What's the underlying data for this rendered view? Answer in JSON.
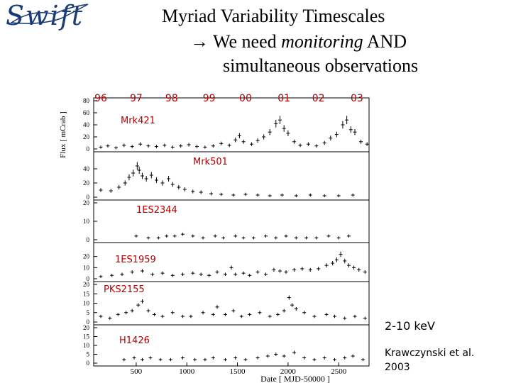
{
  "header": {
    "logo_text": "Swift",
    "title_line1": "Myriad Variability Timescales",
    "arrow": "→",
    "title_line2_pre": " We need ",
    "title_line2_em": "monitoring",
    "title_line2_post": " AND",
    "title_line3": "simultaneous observations"
  },
  "notes": {
    "energy_band": "2-10 keV",
    "citation_line1": "Krawczynski et al.",
    "citation_line2": "2003"
  },
  "colors": {
    "year_label": "#b00000",
    "source_label": "#b00000",
    "points": "#000000",
    "logo": "#1b3a78"
  },
  "chart_data": {
    "type": "scatter",
    "title": "",
    "xlabel": "Date [ MJD-50000 ]",
    "ylabel": "Flux [ mCrab ]",
    "xlim": [
      80,
      2800
    ],
    "xticks": [
      500,
      1000,
      1500,
      2000,
      2500
    ],
    "year_labels": [
      {
        "label": "96",
        "x": 150
      },
      {
        "label": "97",
        "x": 500
      },
      {
        "label": "98",
        "x": 850
      },
      {
        "label": "99",
        "x": 1220
      },
      {
        "label": "00",
        "x": 1580
      },
      {
        "label": "01",
        "x": 1960
      },
      {
        "label": "02",
        "x": 2300
      },
      {
        "label": "03",
        "x": 2680
      }
    ],
    "panels": [
      {
        "name": "Mrk421",
        "ylim": [
          0,
          80
        ],
        "yticks": [
          0,
          20,
          40,
          60,
          80
        ],
        "points": [
          [
            150,
            3
          ],
          [
            220,
            5
          ],
          [
            300,
            2
          ],
          [
            380,
            6
          ],
          [
            460,
            4
          ],
          [
            540,
            8
          ],
          [
            620,
            5
          ],
          [
            700,
            4
          ],
          [
            780,
            6
          ],
          [
            860,
            3
          ],
          [
            940,
            5
          ],
          [
            1020,
            7
          ],
          [
            1100,
            4
          ],
          [
            1180,
            3
          ],
          [
            1260,
            5
          ],
          [
            1340,
            9
          ],
          [
            1420,
            6
          ],
          [
            1480,
            15
          ],
          [
            1520,
            22
          ],
          [
            1560,
            12
          ],
          [
            1640,
            8
          ],
          [
            1700,
            14
          ],
          [
            1760,
            20
          ],
          [
            1820,
            28
          ],
          [
            1880,
            42
          ],
          [
            1920,
            48
          ],
          [
            1960,
            34
          ],
          [
            2000,
            26
          ],
          [
            2060,
            12
          ],
          [
            2120,
            6
          ],
          [
            2200,
            8
          ],
          [
            2280,
            5
          ],
          [
            2360,
            10
          ],
          [
            2420,
            18
          ],
          [
            2480,
            24
          ],
          [
            2540,
            40
          ],
          [
            2580,
            48
          ],
          [
            2620,
            32
          ],
          [
            2660,
            28
          ],
          [
            2720,
            12
          ],
          [
            2780,
            8
          ]
        ]
      },
      {
        "name": "Mrk501",
        "ylim": [
          0,
          60
        ],
        "yticks": [
          0,
          20,
          40
        ],
        "points": [
          [
            150,
            10
          ],
          [
            250,
            9
          ],
          [
            330,
            14
          ],
          [
            390,
            20
          ],
          [
            430,
            28
          ],
          [
            470,
            34
          ],
          [
            510,
            44
          ],
          [
            530,
            38
          ],
          [
            560,
            30
          ],
          [
            600,
            26
          ],
          [
            650,
            31
          ],
          [
            700,
            24
          ],
          [
            760,
            20
          ],
          [
            820,
            26
          ],
          [
            860,
            18
          ],
          [
            920,
            14
          ],
          [
            980,
            11
          ],
          [
            1060,
            8
          ],
          [
            1140,
            7
          ],
          [
            1240,
            5
          ],
          [
            1340,
            4
          ],
          [
            1460,
            3
          ],
          [
            1580,
            4
          ],
          [
            1700,
            3
          ],
          [
            1820,
            2
          ],
          [
            1940,
            3
          ],
          [
            2080,
            2
          ],
          [
            2220,
            3
          ],
          [
            2360,
            2
          ],
          [
            2500,
            2
          ],
          [
            2640,
            3
          ]
        ]
      },
      {
        "name": "1ES2344",
        "ylim": [
          0,
          20
        ],
        "yticks": [
          0,
          10,
          20
        ],
        "points": [
          [
            500,
            2
          ],
          [
            620,
            1
          ],
          [
            720,
            1
          ],
          [
            800,
            2
          ],
          [
            880,
            2
          ],
          [
            960,
            3
          ],
          [
            1060,
            2
          ],
          [
            1160,
            1
          ],
          [
            1280,
            2
          ],
          [
            1360,
            1
          ],
          [
            1480,
            2
          ],
          [
            1560,
            1
          ],
          [
            1660,
            1
          ],
          [
            1780,
            2
          ],
          [
            1880,
            1
          ],
          [
            1980,
            2
          ],
          [
            2080,
            1
          ],
          [
            2180,
            1
          ],
          [
            2280,
            1
          ],
          [
            2400,
            2
          ],
          [
            2500,
            1
          ],
          [
            2600,
            2
          ]
        ]
      },
      {
        "name": "1ES1959",
        "ylim": [
          0,
          30
        ],
        "yticks": [
          0,
          10,
          20
        ],
        "points": [
          [
            150,
            2
          ],
          [
            260,
            3
          ],
          [
            360,
            4
          ],
          [
            460,
            6
          ],
          [
            560,
            7
          ],
          [
            660,
            4
          ],
          [
            760,
            5
          ],
          [
            860,
            3
          ],
          [
            960,
            4
          ],
          [
            1060,
            5
          ],
          [
            1140,
            4
          ],
          [
            1220,
            3
          ],
          [
            1300,
            6
          ],
          [
            1380,
            4
          ],
          [
            1440,
            10
          ],
          [
            1480,
            4
          ],
          [
            1560,
            5
          ],
          [
            1620,
            3
          ],
          [
            1700,
            6
          ],
          [
            1780,
            4
          ],
          [
            1860,
            8
          ],
          [
            1920,
            7
          ],
          [
            1980,
            6
          ],
          [
            2060,
            8
          ],
          [
            2140,
            9
          ],
          [
            2220,
            8
          ],
          [
            2300,
            9
          ],
          [
            2380,
            12
          ],
          [
            2440,
            14
          ],
          [
            2480,
            17
          ],
          [
            2520,
            22
          ],
          [
            2560,
            16
          ],
          [
            2600,
            12
          ],
          [
            2650,
            10
          ],
          [
            2700,
            8
          ],
          [
            2760,
            6
          ]
        ]
      },
      {
        "name": "PKS2155",
        "ylim": [
          0,
          20
        ],
        "yticks": [
          0,
          5,
          10,
          15,
          20
        ],
        "points": [
          [
            150,
            3
          ],
          [
            240,
            2
          ],
          [
            320,
            4
          ],
          [
            400,
            5
          ],
          [
            460,
            6
          ],
          [
            520,
            9
          ],
          [
            560,
            11
          ],
          [
            620,
            6
          ],
          [
            680,
            4
          ],
          [
            760,
            3
          ],
          [
            860,
            5
          ],
          [
            960,
            3
          ],
          [
            1040,
            3
          ],
          [
            1160,
            5
          ],
          [
            1260,
            4
          ],
          [
            1300,
            8
          ],
          [
            1380,
            4
          ],
          [
            1460,
            6
          ],
          [
            1540,
            3
          ],
          [
            1620,
            4
          ],
          [
            1720,
            5
          ],
          [
            1820,
            3
          ],
          [
            1900,
            4
          ],
          [
            1960,
            6
          ],
          [
            2010,
            13
          ],
          [
            2040,
            9
          ],
          [
            2080,
            7
          ],
          [
            2160,
            5
          ],
          [
            2260,
            3
          ],
          [
            2380,
            4
          ],
          [
            2460,
            3
          ],
          [
            2560,
            2
          ],
          [
            2660,
            3
          ],
          [
            2760,
            2
          ]
        ]
      },
      {
        "name": "H1426",
        "ylim": [
          0,
          20
        ],
        "yticks": [
          0,
          5,
          10,
          15,
          20
        ],
        "points": [
          [
            380,
            2
          ],
          [
            480,
            3
          ],
          [
            560,
            2
          ],
          [
            640,
            3
          ],
          [
            740,
            2
          ],
          [
            840,
            2
          ],
          [
            960,
            3
          ],
          [
            1080,
            2
          ],
          [
            1180,
            2
          ],
          [
            1260,
            3
          ],
          [
            1380,
            2
          ],
          [
            1480,
            3
          ],
          [
            1580,
            2
          ],
          [
            1700,
            3
          ],
          [
            1800,
            4
          ],
          [
            1880,
            5
          ],
          [
            1960,
            4
          ],
          [
            2060,
            6
          ],
          [
            2160,
            3
          ],
          [
            2260,
            2
          ],
          [
            2360,
            3
          ],
          [
            2460,
            2
          ],
          [
            2560,
            3
          ],
          [
            2640,
            4
          ],
          [
            2740,
            2
          ]
        ]
      }
    ]
  }
}
